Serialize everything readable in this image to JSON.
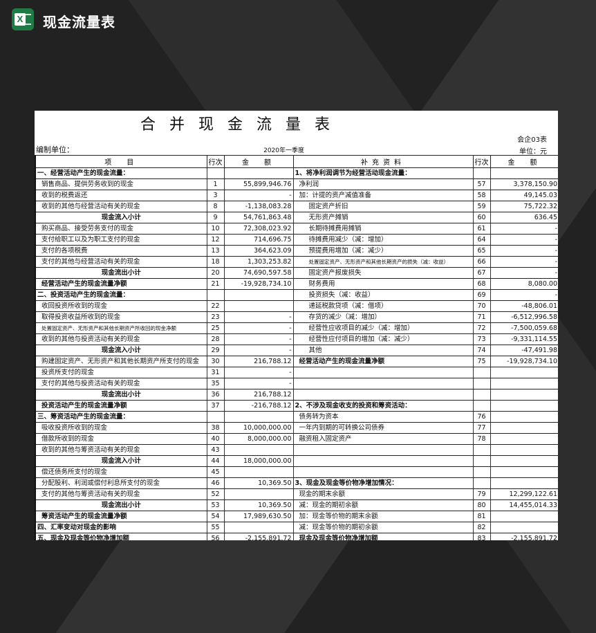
{
  "app": {
    "title": "现金流量表",
    "icon": "excel-icon",
    "brand_color": "#1f7a45"
  },
  "sheet": {
    "title": "合并现金流量表",
    "compiler_label": "编制单位：",
    "period": "2020年一季度",
    "form_no": "会企03表",
    "unit": "单位：元",
    "headers": {
      "item": "项　目",
      "line": "行次",
      "amount": "金　额",
      "supp": "补充资料",
      "line2": "行次",
      "amount2": "金　额"
    },
    "left_rows": [
      {
        "item": "一、经营活动产生的现金流量：",
        "line": "",
        "amount": "",
        "style": "section"
      },
      {
        "item": "销售商品、提供劳务收到的现金",
        "line": "1",
        "amount": "55,899,946.76",
        "style": "indent"
      },
      {
        "item": "收到的税费返还",
        "line": "3",
        "amount": "-",
        "style": "indent"
      },
      {
        "item": "收到的其他与经营活动有关的现金",
        "line": "8",
        "amount": "-1,138,083.28",
        "style": "indent"
      },
      {
        "item": "现金流入小计",
        "line": "9",
        "amount": "54,761,863.48",
        "style": "subtotal"
      },
      {
        "item": "购买商品、接受劳务支付的现金",
        "line": "10",
        "amount": "72,308,023.92",
        "style": "indent"
      },
      {
        "item": "支付给职工以及为职工支付的现金",
        "line": "12",
        "amount": "714,696.75",
        "style": "indent"
      },
      {
        "item": "支付的各项税费",
        "line": "13",
        "amount": "364,623.09",
        "style": "indent"
      },
      {
        "item": "支付的其他与经营活动有关的现金",
        "line": "18",
        "amount": "1,303,253.82",
        "style": "indent"
      },
      {
        "item": "现金流出小计",
        "line": "20",
        "amount": "74,690,597.58",
        "style": "subtotal"
      },
      {
        "item": "经营活动产生的现金流量净额",
        "line": "21",
        "amount": "-19,928,734.10",
        "style": "total"
      },
      {
        "item": "二、投资活动产生的现金流量：",
        "line": "",
        "amount": "",
        "style": "section"
      },
      {
        "item": "收回投资所收到的现金",
        "line": "22",
        "amount": "",
        "style": "indent"
      },
      {
        "item": "取得投资收益所收到的现金",
        "line": "23",
        "amount": "-",
        "style": "indent"
      },
      {
        "item": "处置固定资产、无形资产和其他长期资产所收回的现金净额",
        "line": "25",
        "amount": "-",
        "style": "indent small"
      },
      {
        "item": "收到的其他与投资活动有关的现金",
        "line": "28",
        "amount": "-",
        "style": "indent"
      },
      {
        "item": "现金流入小计",
        "line": "29",
        "amount": "-",
        "style": "subtotal"
      },
      {
        "item": "购建固定资产、无形资产和其他长期资产所支付的现金",
        "line": "30",
        "amount": "216,788.12",
        "style": "indent"
      },
      {
        "item": "投资所支付的现金",
        "line": "31",
        "amount": "-",
        "style": "indent"
      },
      {
        "item": "支付的其他与投资活动有关的现金",
        "line": "35",
        "amount": "-",
        "style": "indent"
      },
      {
        "item": "现金流出小计",
        "line": "36",
        "amount": "216,788.12",
        "style": "subtotal"
      },
      {
        "item": "投资活动产生的现金流量净额",
        "line": "37",
        "amount": "-216,788.12",
        "style": "total"
      },
      {
        "item": "三、筹资活动产生的现金流量：",
        "line": "",
        "amount": "",
        "style": "section"
      },
      {
        "item": "吸收投资所收到的现金",
        "line": "38",
        "amount": "10,000,000.00",
        "style": "indent"
      },
      {
        "item": "借款所收到的现金",
        "line": "40",
        "amount": "8,000,000.00",
        "style": "indent"
      },
      {
        "item": "收到的其他与筹资活动有关的现金",
        "line": "43",
        "amount": "",
        "style": "indent"
      },
      {
        "item": "现金流入小计",
        "line": "44",
        "amount": "18,000,000.00",
        "style": "subtotal"
      },
      {
        "item": "偿还债务所支付的现金",
        "line": "45",
        "amount": "",
        "style": "indent"
      },
      {
        "item": "分配股利、利润或偿付利息所支付的现金",
        "line": "46",
        "amount": "10,369.50",
        "style": "indent"
      },
      {
        "item": "支付的其他与筹资活动有关的现金",
        "line": "52",
        "amount": "",
        "style": "indent"
      },
      {
        "item": "现金流出小计",
        "line": "53",
        "amount": "10,369.50",
        "style": "subtotal"
      },
      {
        "item": "筹资活动产生的现金流量净额",
        "line": "54",
        "amount": "17,989,630.50",
        "style": "total"
      },
      {
        "item": "四、汇率变动对现金的影响",
        "line": "55",
        "amount": "",
        "style": "section"
      },
      {
        "item": "五、现金及现金等价物净增加额",
        "line": "56",
        "amount": "-2,155,891.72",
        "style": "section"
      }
    ],
    "right_rows": [
      {
        "item": "1、将净利润调节为经营活动现金流量：",
        "line": "",
        "amount": "",
        "style": "section"
      },
      {
        "item": "净利润",
        "line": "57",
        "amount": "3,378,150.90",
        "style": "indent"
      },
      {
        "item": "加：计提的资产减值准备",
        "line": "58",
        "amount": "49,145.03",
        "style": "indent"
      },
      {
        "item": "固定资产折旧",
        "line": "59",
        "amount": "75,722.32",
        "style": "indent2"
      },
      {
        "item": "无形资产摊销",
        "line": "60",
        "amount": "636.45",
        "style": "indent2"
      },
      {
        "item": "长期待摊费用摊销",
        "line": "61",
        "amount": "-",
        "style": "indent2"
      },
      {
        "item": "待摊费用减少（减：增加）",
        "line": "64",
        "amount": "-",
        "style": "indent2"
      },
      {
        "item": "预提费用增加（减：减少）",
        "line": "65",
        "amount": "-",
        "style": "indent2"
      },
      {
        "item": "处置固定资产、无形资产和其他长期资产的损失（减：收益）",
        "line": "66",
        "amount": "-",
        "style": "indent2 small"
      },
      {
        "item": "固定资产报废损失",
        "line": "67",
        "amount": "-",
        "style": "indent2"
      },
      {
        "item": "财务费用",
        "line": "68",
        "amount": "8,080.00",
        "style": "indent2"
      },
      {
        "item": "投资损失（减：收益）",
        "line": "69",
        "amount": "-",
        "style": "indent2"
      },
      {
        "item": "递延税款贷项（减：借项）",
        "line": "70",
        "amount": "-48,806.01",
        "style": "indent2"
      },
      {
        "item": "存货的减少（减：增加）",
        "line": "71",
        "amount": "-6,512,996.58",
        "style": "indent2"
      },
      {
        "item": "经营性应收项目的减少（减：增加）",
        "line": "72",
        "amount": "-7,500,059.68",
        "style": "indent2"
      },
      {
        "item": "经营性应付项目的增加（减：减少）",
        "line": "73",
        "amount": "-9,331,114.55",
        "style": "indent2"
      },
      {
        "item": "其他",
        "line": "74",
        "amount": "-47,491.98",
        "style": "indent2"
      },
      {
        "item": "经营活动产生的现金流量净额",
        "line": "75",
        "amount": "-19,928,734.10",
        "style": "total"
      },
      {
        "item": "",
        "line": "",
        "amount": "",
        "style": ""
      },
      {
        "item": "",
        "line": "",
        "amount": "",
        "style": ""
      },
      {
        "item": "",
        "line": "",
        "amount": "",
        "style": ""
      },
      {
        "item": "2、不涉及现金收支的投资和筹资活动：",
        "line": "",
        "amount": "",
        "style": "section"
      },
      {
        "item": "债务转为资本",
        "line": "76",
        "amount": "",
        "style": "indent"
      },
      {
        "item": "一年内到期的可转换公司债券",
        "line": "77",
        "amount": "",
        "style": "indent"
      },
      {
        "item": "融资租入固定资产",
        "line": "78",
        "amount": "",
        "style": "indent"
      },
      {
        "item": "",
        "line": "",
        "amount": "",
        "style": ""
      },
      {
        "item": "",
        "line": "",
        "amount": "",
        "style": ""
      },
      {
        "item": "",
        "line": "",
        "amount": "",
        "style": ""
      },
      {
        "item": "3、现金及现金等价物净增加情况：",
        "line": "",
        "amount": "",
        "style": "section"
      },
      {
        "item": "现金的期末余额",
        "line": "79",
        "amount": "12,299,122.61",
        "style": "indent"
      },
      {
        "item": "减：现金的期初余额",
        "line": "80",
        "amount": "14,455,014.33",
        "style": "indent"
      },
      {
        "item": "加：现金等价物的期末余额",
        "line": "81",
        "amount": "",
        "style": "indent"
      },
      {
        "item": "减：现金等价物的期初余额",
        "line": "82",
        "amount": "",
        "style": "indent"
      },
      {
        "item": "现金及现金等价物净增加额",
        "line": "83",
        "amount": "-2,155,891.72",
        "style": "total"
      }
    ]
  }
}
